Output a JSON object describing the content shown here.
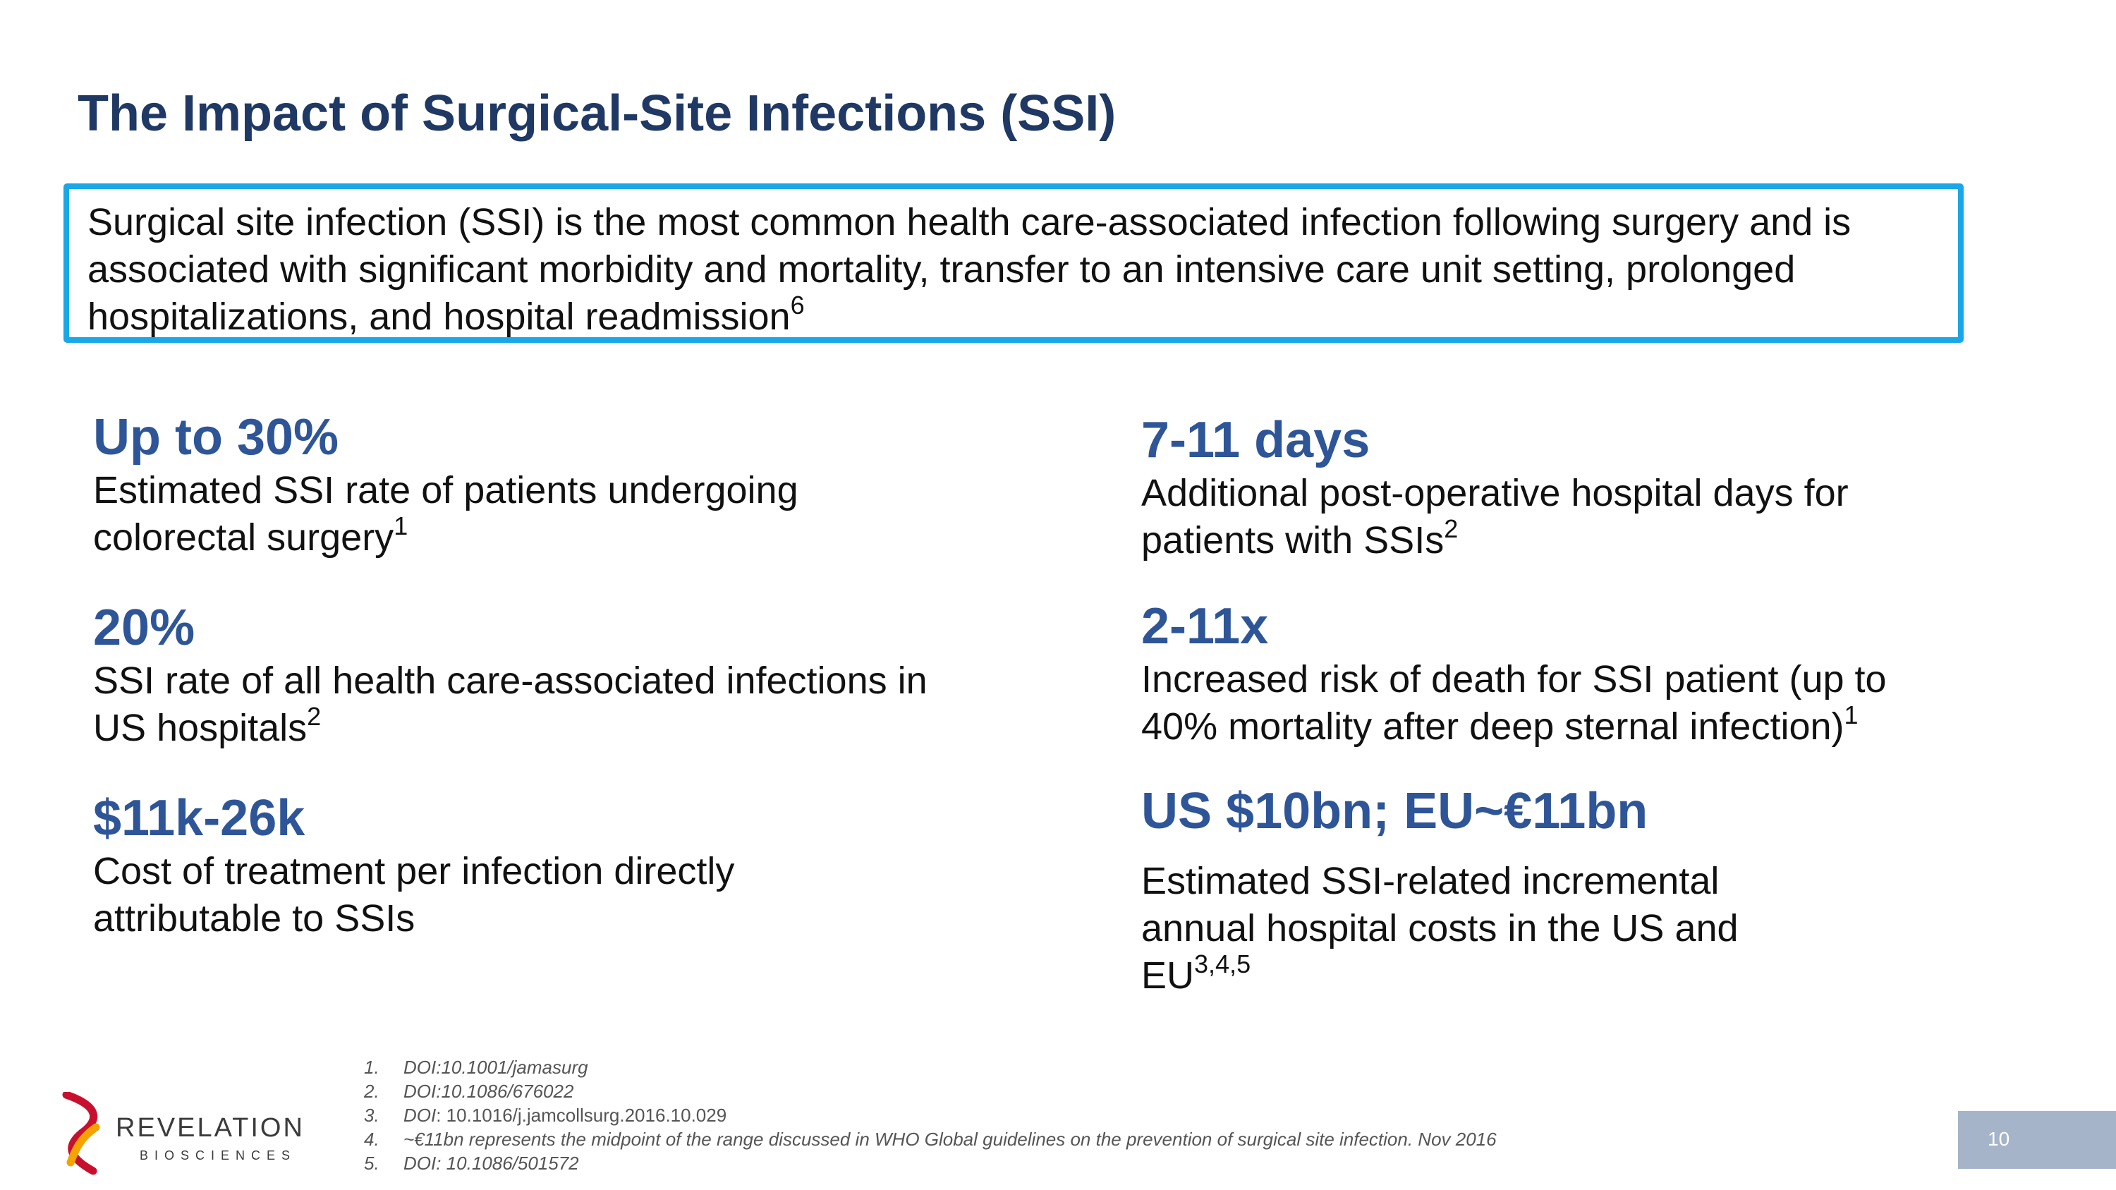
{
  "title": "The Impact of Surgical-Site Infections (SSI)",
  "intro": {
    "text": "Surgical site infection (SSI) is the most common health care-associated infection following surgery and is associated with significant morbidity and mortality, transfer to an intensive care unit setting, prolonged hospitalizations, and hospital readmission",
    "ref": "6"
  },
  "stats_left": [
    {
      "value": "Up to 30%",
      "desc": "Estimated SSI rate of patients undergoing colorectal surgery",
      "ref": "1"
    },
    {
      "value": "20%",
      "desc": "SSI rate of all health care-associated infections in US hospitals",
      "ref": "2"
    },
    {
      "value": "$11k-26k",
      "desc": "Cost of treatment per infection directly attributable to SSIs",
      "ref": ""
    }
  ],
  "stats_right": [
    {
      "value": "7-11 days",
      "desc": "Additional post-operative hospital days for patients with SSIs",
      "ref": "2"
    },
    {
      "value": "2-11x",
      "desc": "Increased risk of death for SSI patient (up to 40% mortality after deep sternal infection)",
      "ref": "1"
    },
    {
      "value": "US $10bn; EU~€11bn",
      "desc": "Estimated SSI-related incremental annual hospital costs in the US and EU",
      "ref": "3,4,5"
    }
  ],
  "footnotes": [
    {
      "num": "1.",
      "italic": "DOI:10.1001/jamasurg",
      "plain": ""
    },
    {
      "num": "2.",
      "italic": "DOI:10.1086/676022",
      "plain": ""
    },
    {
      "num": "3.",
      "italic": "DOI",
      "plain": ": 10.1016/j.jamcollsurg.2016.10.029"
    },
    {
      "num": "4.",
      "italic": "~€11bn represents the midpoint of the range discussed in WHO Global guidelines on the prevention of surgical site infection. Nov 2016",
      "plain": ""
    },
    {
      "num": "5.",
      "italic": "DOI: 10.1086/501572",
      "plain": ""
    }
  ],
  "logo": {
    "name": "REVELATION",
    "subtitle": "BIOSCIENCES",
    "icon": "dna-helix-icon",
    "colors": [
      "#c8102e",
      "#f4a300"
    ]
  },
  "page_number": "10",
  "colors": {
    "title": "#1f3864",
    "stat_value": "#2e5597",
    "box_border": "#1aa7e8",
    "page_box": "#a5b4c8"
  }
}
